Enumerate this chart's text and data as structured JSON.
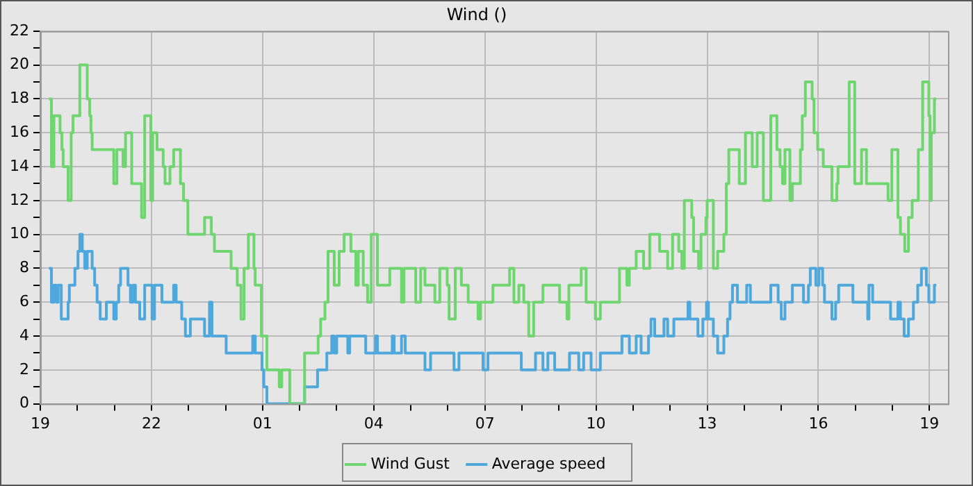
{
  "chart_data": {
    "type": "step",
    "title": "Wind ()",
    "legend": "bottom",
    "grid": true,
    "marker": "none",
    "line_style": "solid",
    "xlim": [
      "--01-01T19:00",
      "--01-02T19:30"
    ],
    "xticks": [
      {
        "value": "--01-01T19:00",
        "label": "19"
      },
      {
        "value": "--01-01T20:00",
        "label": null
      },
      {
        "value": "--01-01T21:00",
        "label": null
      },
      {
        "value": "--01-01T22:00",
        "label": "22"
      },
      {
        "value": "--01-01T23:00",
        "label": null
      },
      {
        "value": "--01-02T00:00",
        "label": null
      },
      {
        "value": "--01-02T01:00",
        "label": "01"
      },
      {
        "value": "--01-02T02:00",
        "label": null
      },
      {
        "value": "--01-02T03:00",
        "label": null
      },
      {
        "value": "--01-02T04:00",
        "label": "04"
      },
      {
        "value": "--01-02T05:00",
        "label": null
      },
      {
        "value": "--01-02T06:00",
        "label": null
      },
      {
        "value": "--01-02T07:00",
        "label": "07"
      },
      {
        "value": "--01-02T08:00",
        "label": null
      },
      {
        "value": "--01-02T09:00",
        "label": null
      },
      {
        "value": "--01-02T10:00",
        "label": "10"
      },
      {
        "value": "--01-02T11:00",
        "label": null
      },
      {
        "value": "--01-02T12:00",
        "label": null
      },
      {
        "value": "--01-02T13:00",
        "label": "13"
      },
      {
        "value": "--01-02T14:00",
        "label": null
      },
      {
        "value": "--01-02T15:00",
        "label": null
      },
      {
        "value": "--01-02T16:00",
        "label": "16"
      },
      {
        "value": "--01-02T17:00",
        "label": null
      },
      {
        "value": "--01-02T18:00",
        "label": null
      },
      {
        "value": "--01-02T19:00",
        "label": "19"
      }
    ],
    "ylim": [
      0,
      22
    ],
    "yticks": [
      0,
      {
        "value": 1,
        "label": null
      },
      2,
      {
        "value": 3,
        "label": null
      },
      4,
      {
        "value": 5,
        "label": null
      },
      6,
      {
        "value": 7,
        "label": null
      },
      8,
      {
        "value": 9,
        "label": null
      },
      10,
      {
        "value": 11,
        "label": null
      },
      12,
      {
        "value": 13,
        "label": null
      },
      14,
      {
        "value": 15,
        "label": null
      },
      16,
      {
        "value": 17,
        "label": null
      },
      18,
      {
        "value": 19,
        "label": null
      },
      20,
      {
        "value": 21,
        "label": null
      },
      22
    ],
    "series": [
      {
        "name": "Wind Gust",
        "color": "#6fd66f",
        "x": [
          "--01-01T19:14",
          "--01-01T19:18",
          "--01-01T19:22",
          "--01-01T19:32",
          "--01-01T19:35",
          "--01-01T19:37",
          "--01-01T19:45",
          "--01-01T19:50",
          "--01-01T19:53",
          "--01-01T20:04",
          "--01-01T20:16",
          "--01-01T20:20",
          "--01-01T20:22",
          "--01-01T20:24",
          "--01-01T20:59",
          "--01-01T21:04",
          "--01-01T21:14",
          "--01-01T21:18",
          "--01-01T21:28",
          "--01-01T21:44",
          "--01-01T21:49",
          "--01-01T21:59",
          "--01-01T22:02",
          "--01-01T22:09",
          "--01-01T22:19",
          "--01-01T22:22",
          "--01-01T22:30",
          "--01-01T22:36",
          "--01-01T22:47",
          "--01-01T22:52",
          "--01-01T22:59",
          "--01-01T23:26",
          "--01-01T23:37",
          "--01-01T23:42",
          "--01-02T00:09",
          "--01-02T00:19",
          "--01-02T00:25",
          "--01-02T00:30",
          "--01-02T00:37",
          "--01-02T00:46",
          "--01-02T00:48",
          "--01-02T00:58",
          "--01-02T01:07",
          "--01-02T01:27",
          "--01-02T01:31",
          "--01-02T01:44",
          "--01-02T02:08",
          "--01-02T02:30",
          "--01-02T02:34",
          "--01-02T02:41",
          "--01-02T02:46",
          "--01-02T02:56",
          "--01-02T03:04",
          "--01-02T03:12",
          "--01-02T03:23",
          "--01-02T03:31",
          "--01-02T03:35",
          "--01-02T03:43",
          "--01-02T03:50",
          "--01-02T03:56",
          "--01-02T04:06",
          "--01-02T04:26",
          "--01-02T04:45",
          "--01-02T04:49",
          "--01-02T05:08",
          "--01-02T05:16",
          "--01-02T05:23",
          "--01-02T05:39",
          "--01-02T05:47",
          "--01-02T05:59",
          "--01-02T06:02",
          "--01-02T06:12",
          "--01-02T06:22",
          "--01-02T06:33",
          "--01-02T06:49",
          "--01-02T06:53",
          "--01-02T07:13",
          "--01-02T07:40",
          "--01-02T07:47",
          "--01-02T07:55",
          "--01-02T08:03",
          "--01-02T08:11",
          "--01-02T08:19",
          "--01-02T08:34",
          "--01-02T09:01",
          "--01-02T09:13",
          "--01-02T09:16",
          "--01-02T09:36",
          "--01-02T09:44",
          "--01-02T09:59",
          "--01-02T10:07",
          "--01-02T10:38",
          "--01-02T10:50",
          "--01-02T10:54",
          "--01-02T11:05",
          "--01-02T11:17",
          "--01-02T11:27",
          "--01-02T11:43",
          "--01-02T11:56",
          "--01-02T12:04",
          "--01-02T12:14",
          "--01-02T12:19",
          "--01-02T12:23",
          "--01-02T12:35",
          "--01-02T12:38",
          "--01-02T12:46",
          "--01-02T12:50",
          "--01-02T12:58",
          "--01-02T13:00",
          "--01-02T13:10",
          "--01-02T13:17",
          "--01-02T13:27",
          "--01-02T13:31",
          "--01-02T13:35",
          "--01-02T13:52",
          "--01-02T14:02",
          "--01-02T14:13",
          "--01-02T14:21",
          "--01-02T14:31",
          "--01-02T14:43",
          "--01-02T14:53",
          "--01-02T14:58",
          "--01-02T15:02",
          "--01-02T15:06",
          "--01-02T15:14",
          "--01-02T15:18",
          "--01-02T15:31",
          "--01-02T15:34",
          "--01-02T15:39",
          "--01-02T15:50",
          "--01-02T15:53",
          "--01-02T15:59",
          "--01-02T16:08",
          "--01-02T16:22",
          "--01-02T16:30",
          "--01-02T16:32",
          "--01-02T16:50",
          "--01-02T16:59",
          "--01-02T17:10",
          "--01-02T17:18",
          "--01-02T17:53",
          "--01-02T17:59",
          "--01-02T18:09",
          "--01-02T18:13",
          "--01-02T18:20",
          "--01-02T18:26",
          "--01-02T18:32",
          "--01-02T18:42",
          "--01-02T18:49",
          "--01-02T18:59",
          "--01-02T19:01",
          "--01-02T19:03",
          "--01-02T19:08",
          "--01-02T19:11"
        ],
        "values": [
          18,
          14,
          17,
          16,
          15,
          14,
          12,
          16,
          17,
          20,
          18,
          17,
          16,
          15,
          13,
          15,
          14,
          16,
          13,
          11,
          17,
          12,
          16,
          15,
          14,
          13,
          14,
          15,
          13,
          12,
          10,
          11,
          10,
          9,
          8,
          7,
          5,
          8,
          10,
          8,
          7,
          4,
          2,
          1,
          2,
          0,
          3,
          4,
          5,
          6,
          9,
          7,
          9,
          10,
          9,
          7,
          9,
          7,
          6,
          10,
          7,
          8,
          6,
          8,
          6,
          8,
          7,
          6,
          8,
          7,
          5,
          8,
          7,
          6,
          5,
          6,
          7,
          8,
          6,
          7,
          6,
          4,
          6,
          7,
          6,
          5,
          7,
          8,
          6,
          5,
          6,
          8,
          7,
          8,
          9,
          8,
          10,
          9,
          8,
          10,
          9,
          8,
          12,
          11,
          9,
          8,
          10,
          11,
          12,
          8,
          9,
          10,
          13,
          15,
          13,
          16,
          14,
          16,
          12,
          17,
          15,
          14,
          13,
          15,
          12,
          13,
          15,
          17,
          19,
          18,
          16,
          15,
          14,
          12,
          13,
          14,
          19,
          13,
          15,
          13,
          12,
          15,
          11,
          10,
          9,
          11,
          12,
          15,
          19,
          17,
          12,
          16,
          18,
          18
        ]
      },
      {
        "name": "Average speed",
        "color": "#4ea8db",
        "x": [
          "--01-01T19:14",
          "--01-01T19:18",
          "--01-01T19:22",
          "--01-01T19:26",
          "--01-01T19:29",
          "--01-01T19:34",
          "--01-01T19:45",
          "--01-01T19:47",
          "--01-01T19:56",
          "--01-01T20:01",
          "--01-01T20:04",
          "--01-01T20:08",
          "--01-01T20:12",
          "--01-01T20:16",
          "--01-01T20:24",
          "--01-01T20:28",
          "--01-01T20:32",
          "--01-01T20:37",
          "--01-01T20:47",
          "--01-01T20:59",
          "--01-01T21:03",
          "--01-01T21:07",
          "--01-01T21:10",
          "--01-01T21:22",
          "--01-01T21:26",
          "--01-01T21:30",
          "--01-01T21:34",
          "--01-01T21:41",
          "--01-01T21:49",
          "--01-01T22:01",
          "--01-01T22:05",
          "--01-01T22:17",
          "--01-01T22:36",
          "--01-01T22:40",
          "--01-01T22:49",
          "--01-01T22:55",
          "--01-01T23:03",
          "--01-01T23:26",
          "--01-01T23:34",
          "--01-01T23:38",
          "--01-02T00:01",
          "--01-02T00:44",
          "--01-02T00:48",
          "--01-02T00:59",
          "--01-02T01:02",
          "--01-02T01:07",
          "--01-02T02:08",
          "--01-02T02:29",
          "--01-02T02:44",
          "--01-02T02:52",
          "--01-02T02:56",
          "--01-02T03:00",
          "--01-02T03:18",
          "--01-02T03:21",
          "--01-02T03:47",
          "--01-02T04:03",
          "--01-02T04:06",
          "--01-02T04:30",
          "--01-02T04:33",
          "--01-02T04:45",
          "--01-02T04:51",
          "--01-02T05:23",
          "--01-02T05:32",
          "--01-02T06:10",
          "--01-02T06:18",
          "--01-02T06:57",
          "--01-02T07:05",
          "--01-02T07:59",
          "--01-02T08:22",
          "--01-02T08:34",
          "--01-02T08:42",
          "--01-02T08:53",
          "--01-02T09:17",
          "--01-02T09:32",
          "--01-02T09:40",
          "--01-02T09:52",
          "--01-02T10:07",
          "--01-02T10:42",
          "--01-02T10:54",
          "--01-02T10:58",
          "--01-02T11:05",
          "--01-02T11:13",
          "--01-02T11:25",
          "--01-02T11:29",
          "--01-02T11:35",
          "--01-02T11:50",
          "--01-02T11:56",
          "--01-02T12:06",
          "--01-02T12:29",
          "--01-02T12:32",
          "--01-02T12:45",
          "--01-02T12:53",
          "--01-02T12:59",
          "--01-02T13:02",
          "--01-02T13:10",
          "--01-02T13:17",
          "--01-02T13:27",
          "--01-02T13:33",
          "--01-02T13:37",
          "--01-02T13:41",
          "--01-02T13:49",
          "--01-02T14:04",
          "--01-02T14:10",
          "--01-02T14:43",
          "--01-02T14:55",
          "--01-02T15:00",
          "--01-02T15:06",
          "--01-02T15:18",
          "--01-02T15:36",
          "--01-02T15:44",
          "--01-02T15:47",
          "--01-02T15:56",
          "--01-02T16:01",
          "--01-02T16:07",
          "--01-02T16:10",
          "--01-02T16:22",
          "--01-02T16:28",
          "--01-02T16:33",
          "--01-02T16:56",
          "--01-02T17:20",
          "--01-02T17:22",
          "--01-02T17:28",
          "--01-02T17:57",
          "--01-02T18:09",
          "--01-02T18:13",
          "--01-02T18:19",
          "--01-02T18:26",
          "--01-02T18:34",
          "--01-02T18:41",
          "--01-02T18:47",
          "--01-02T18:55",
          "--01-02T18:59",
          "--01-02T19:08",
          "--01-02T19:11"
        ],
        "values": [
          8,
          6,
          7,
          6,
          7,
          5,
          6,
          7,
          8,
          9,
          10,
          9,
          8,
          9,
          8,
          7,
          6,
          5,
          6,
          5,
          6,
          7,
          8,
          7,
          6,
          7,
          6,
          5,
          7,
          5,
          7,
          6,
          7,
          6,
          5,
          4,
          5,
          4,
          6,
          4,
          3,
          4,
          3,
          2,
          1,
          0,
          1,
          2,
          3,
          4,
          3,
          4,
          3,
          4,
          3,
          4,
          3,
          4,
          3,
          4,
          3,
          2,
          3,
          2,
          3,
          2,
          3,
          2,
          3,
          2,
          3,
          2,
          3,
          2,
          3,
          2,
          3,
          4,
          3,
          3,
          4,
          3,
          4,
          5,
          4,
          5,
          4,
          5,
          6,
          5,
          4,
          5,
          6,
          5,
          4,
          3,
          4,
          5,
          6,
          7,
          6,
          7,
          6,
          7,
          6,
          5,
          6,
          7,
          6,
          7,
          8,
          7,
          8,
          7,
          6,
          5,
          6,
          7,
          6,
          5,
          7,
          6,
          5,
          6,
          5,
          4,
          5,
          6,
          7,
          8,
          7,
          6,
          7,
          7
        ]
      }
    ]
  }
}
